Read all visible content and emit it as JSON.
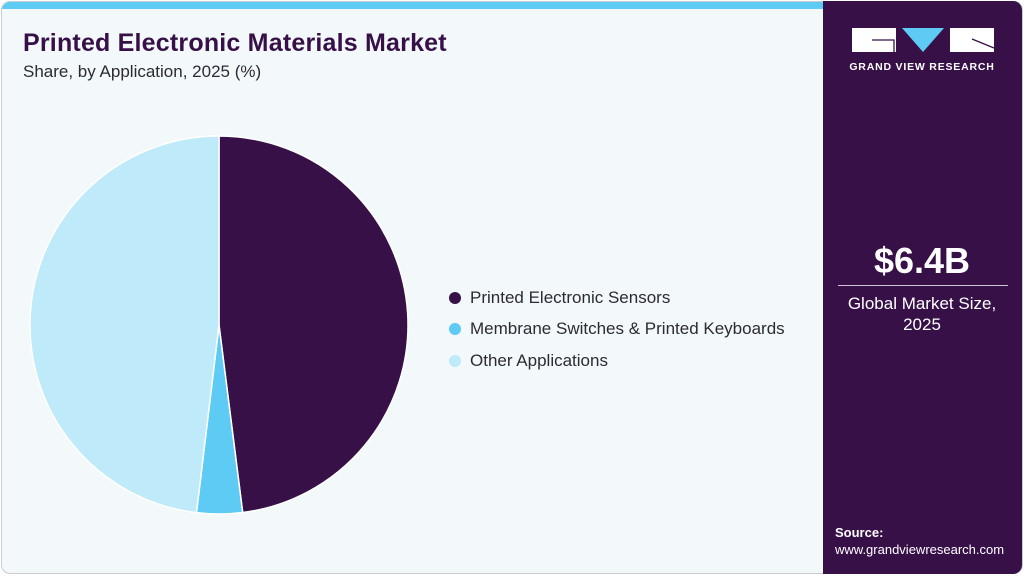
{
  "header": {
    "title": "Printed Electronic Materials Market",
    "subtitle": "Share, by Application, 2025 (%)"
  },
  "colors": {
    "accent_bar": "#5ecbf5",
    "side_panel": "#371048",
    "background": "#f3f8fb"
  },
  "legend": {
    "items": [
      {
        "label": "Printed Electronic Sensors",
        "color": "#371048"
      },
      {
        "label": "Membrane Switches & Printed Keyboards",
        "color": "#5ecbf5"
      },
      {
        "label": "Other Applications",
        "color": "#bfeaf9"
      }
    ]
  },
  "side_panel": {
    "logo_text": "GRAND VIEW RESEARCH",
    "market_value": "$6.4B",
    "market_label_line1": "Global Market Size,",
    "market_label_line2": "2025",
    "source_label": "Source:",
    "source_url": "www.grandviewresearch.com"
  },
  "chart_data": {
    "type": "pie",
    "title": "Printed Electronic Materials Market",
    "subtitle": "Share, by Application, 2025 (%)",
    "categories": [
      "Printed Electronic Sensors",
      "Membrane Switches & Printed Keyboards",
      "Other Applications"
    ],
    "values": [
      48.0,
      3.9,
      48.1
    ],
    "colors": [
      "#371048",
      "#5ecbf5",
      "#bfeaf9"
    ],
    "start_angle_deg": 0,
    "direction": "clockwise",
    "legend_position": "right",
    "data_labels": false
  }
}
